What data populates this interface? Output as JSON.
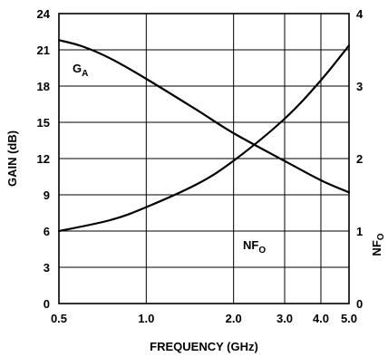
{
  "chart_data": {
    "type": "line",
    "xlabel": "FREQUENCY (GHz)",
    "ylabel": "GAIN (dB)",
    "y2label": "NF",
    "y2label_sub": "O",
    "x_scale": "log",
    "xlim": [
      0.5,
      5.0
    ],
    "ylim": [
      0,
      24
    ],
    "y2lim": [
      0,
      4
    ],
    "x_ticks": [
      0.5,
      1.0,
      2.0,
      3.0,
      4.0,
      5.0
    ],
    "x_tick_labels": [
      "0.5",
      "1.0",
      "2.0",
      "3.0",
      "4.0",
      "5.0"
    ],
    "y_ticks": [
      0,
      3,
      6,
      9,
      12,
      15,
      18,
      21,
      24
    ],
    "y_tick_labels": [
      "0",
      "3",
      "6",
      "9",
      "12",
      "15",
      "18",
      "21",
      "24"
    ],
    "y2_ticks": [
      0,
      1,
      2,
      3,
      4
    ],
    "y2_tick_labels": [
      "0",
      "1",
      "2",
      "3",
      "4"
    ],
    "grid": true,
    "series": [
      {
        "name": "G",
        "name_sub": "A",
        "axis": "left",
        "x": [
          0.5,
          0.6,
          0.75,
          1.0,
          1.5,
          2.0,
          3.0,
          4.0,
          5.0
        ],
        "y": [
          21.8,
          21.3,
          20.3,
          18.6,
          16.0,
          14.1,
          11.8,
          10.2,
          9.2
        ]
      },
      {
        "name": "NF",
        "name_sub": "O",
        "axis": "right",
        "x": [
          0.5,
          0.75,
          1.0,
          1.5,
          2.0,
          3.0,
          4.0,
          5.0
        ],
        "y": [
          1.0,
          1.15,
          1.33,
          1.65,
          1.97,
          2.55,
          3.08,
          3.56
        ]
      }
    ]
  }
}
